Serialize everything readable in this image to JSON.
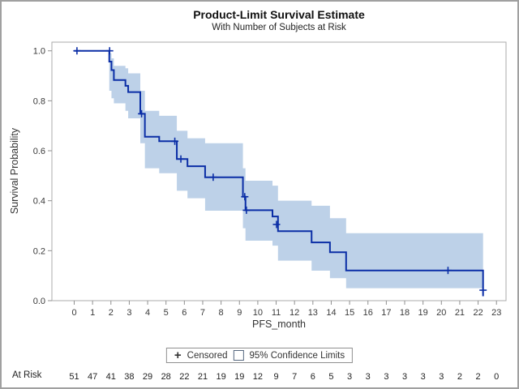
{
  "figure": {
    "title": "Product-Limit Survival Estimate",
    "subtitle": "With Number of Subjects at Risk"
  },
  "axes": {
    "x_label": "PFS_month",
    "y_label": "Survival Probability"
  },
  "legend": {
    "censored_marker": "+",
    "censored_label": "Censored",
    "ci_label": "95% Confidence Limits"
  },
  "at_risk": {
    "label": "At Risk",
    "times": [
      0,
      1,
      2,
      3,
      4,
      5,
      6,
      7,
      8,
      9,
      10,
      11,
      12,
      13,
      14,
      15,
      16,
      17,
      18,
      19,
      20,
      21,
      22,
      23
    ],
    "values": [
      51,
      47,
      41,
      38,
      29,
      28,
      22,
      21,
      19,
      19,
      12,
      9,
      7,
      6,
      5,
      3,
      3,
      3,
      3,
      3,
      3,
      2,
      2,
      0
    ]
  },
  "colors": {
    "line": "#0b2ea6",
    "band": "#bdd1e8",
    "frame": "#ababab",
    "tick": "#8f8f8f",
    "tick_text": "#3a3a3a",
    "text": "#333333",
    "at_risk_text": "#222222"
  },
  "chart_data": {
    "type": "line",
    "variant": "kaplan_meier_step",
    "title": "Product-Limit Survival Estimate",
    "subtitle": "With Number of Subjects at Risk",
    "xlabel": "PFS_month",
    "ylabel": "Survival Probability",
    "xlim": [
      -1.2,
      23.5
    ],
    "ylim": [
      0.0,
      1.04
    ],
    "x_ticks": [
      0,
      1,
      2,
      3,
      4,
      5,
      6,
      7,
      8,
      9,
      10,
      11,
      12,
      13,
      14,
      15,
      16,
      17,
      18,
      19,
      20,
      21,
      22,
      23
    ],
    "y_ticks": [
      0.0,
      0.2,
      0.4,
      0.6,
      0.8,
      1.0
    ],
    "grid": false,
    "legend_position": "bottom-center",
    "series": [
      {
        "name": "Product-Limit Estimate",
        "type": "step",
        "points": [
          [
            0,
            1.0
          ],
          [
            1.91,
            0.957
          ],
          [
            2.03,
            0.923
          ],
          [
            2.16,
            0.883
          ],
          [
            2.79,
            0.86
          ],
          [
            2.94,
            0.835
          ],
          [
            3.6,
            0.748
          ],
          [
            3.85,
            0.656
          ],
          [
            4.63,
            0.638
          ],
          [
            5.59,
            0.567
          ],
          [
            6.17,
            0.538
          ],
          [
            7.13,
            0.494
          ],
          [
            9.19,
            0.416
          ],
          [
            9.33,
            0.362
          ],
          [
            10.8,
            0.337
          ],
          [
            11.1,
            0.278
          ],
          [
            12.93,
            0.233
          ],
          [
            13.93,
            0.194
          ],
          [
            14.81,
            0.121
          ],
          [
            22.27,
            0.018
          ]
        ]
      },
      {
        "name": "95% Confidence Limits",
        "type": "band",
        "segments": [
          [
            1.91,
            2.03,
            0.84,
            0.99
          ],
          [
            2.03,
            2.16,
            0.81,
            0.97
          ],
          [
            2.16,
            2.79,
            0.79,
            0.94
          ],
          [
            2.79,
            2.94,
            0.76,
            0.93
          ],
          [
            2.94,
            3.6,
            0.73,
            0.91
          ],
          [
            3.6,
            3.85,
            0.63,
            0.84
          ],
          [
            3.85,
            4.63,
            0.53,
            0.76
          ],
          [
            4.63,
            5.59,
            0.51,
            0.74
          ],
          [
            5.59,
            6.17,
            0.44,
            0.68
          ],
          [
            6.17,
            7.13,
            0.41,
            0.65
          ],
          [
            7.13,
            9.19,
            0.36,
            0.63
          ],
          [
            9.19,
            9.33,
            0.29,
            0.53
          ],
          [
            9.33,
            10.8,
            0.24,
            0.48
          ],
          [
            10.8,
            11.1,
            0.22,
            0.46
          ],
          [
            11.1,
            12.93,
            0.16,
            0.4
          ],
          [
            12.93,
            13.93,
            0.12,
            0.38
          ],
          [
            13.93,
            14.81,
            0.09,
            0.33
          ],
          [
            14.81,
            22.27,
            0.05,
            0.27
          ]
        ]
      },
      {
        "name": "Censored",
        "type": "plus_markers",
        "points": [
          [
            0.15,
            1.0
          ],
          [
            1.93,
            1.0
          ],
          [
            3.67,
            0.748
          ],
          [
            5.48,
            0.638
          ],
          [
            5.81,
            0.567
          ],
          [
            7.57,
            0.494
          ],
          [
            9.29,
            0.416
          ],
          [
            9.38,
            0.362
          ],
          [
            11.02,
            0.305
          ],
          [
            20.36,
            0.121
          ],
          [
            22.27,
            0.042
          ]
        ]
      }
    ],
    "at_risk": {
      "label": "At Risk",
      "times": [
        0,
        1,
        2,
        3,
        4,
        5,
        6,
        7,
        8,
        9,
        10,
        11,
        12,
        13,
        14,
        15,
        16,
        17,
        18,
        19,
        20,
        21,
        22,
        23
      ],
      "values": [
        51,
        47,
        41,
        38,
        29,
        28,
        22,
        21,
        19,
        19,
        12,
        9,
        7,
        6,
        5,
        3,
        3,
        3,
        3,
        3,
        3,
        2,
        2,
        0
      ]
    }
  }
}
